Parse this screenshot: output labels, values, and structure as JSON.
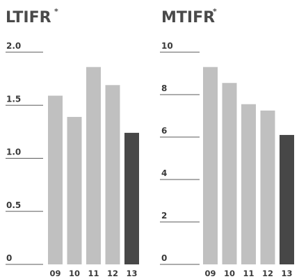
{
  "chart_data": [
    {
      "type": "bar",
      "title": "LTIFR",
      "title_marker": "*",
      "categories": [
        "09",
        "10",
        "11",
        "12",
        "13"
      ],
      "values": [
        1.59,
        1.39,
        1.86,
        1.69,
        1.24
      ],
      "ylim": [
        0,
        2.0
      ],
      "yticks": [
        "0",
        "0.5",
        "1.0",
        "1.5",
        "2.0"
      ],
      "ytick_values": [
        0,
        0.5,
        1.0,
        1.5,
        2.0
      ],
      "grid": true,
      "highlight_index": 4
    },
    {
      "type": "bar",
      "title": "MTIFR",
      "title_marker": "*",
      "categories": [
        "09",
        "10",
        "11",
        "12",
        "13"
      ],
      "values": [
        9.3,
        8.55,
        7.55,
        7.25,
        6.1
      ],
      "ylim": [
        0,
        10
      ],
      "yticks": [
        "0",
        "2",
        "4",
        "6",
        "8",
        "10"
      ],
      "ytick_values": [
        0,
        2,
        4,
        6,
        8,
        10
      ],
      "grid": true,
      "highlight_index": 4
    }
  ],
  "colors": {
    "bar": "#c0c0c0",
    "bar_highlight": "#474747",
    "text": "#3a3a3a"
  }
}
